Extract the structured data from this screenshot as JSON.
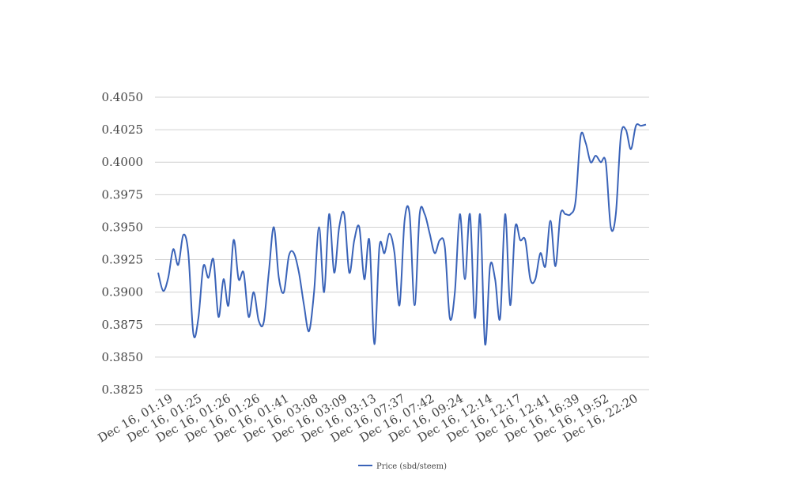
{
  "chart_data": {
    "type": "line",
    "title": "",
    "xlabel": "",
    "ylabel": "",
    "ylim": [
      0.3825,
      0.405
    ],
    "y_ticks": [
      "0.3825",
      "0.3850",
      "0.3875",
      "0.3900",
      "0.3925",
      "0.3950",
      "0.3975",
      "0.4000",
      "0.4025",
      "0.4050"
    ],
    "x_tick_labels": [
      "Dec 16, 01:19",
      "Dec 16, 01:25",
      "Dec 16, 01:26",
      "Dec 16, 01:26",
      "Dec 16, 01:41",
      "Dec 16, 03:08",
      "Dec 16, 03:09",
      "Dec 16, 03:13",
      "Dec 16, 07:37",
      "Dec 16, 07:42",
      "Dec 16, 09:24",
      "Dec 16, 12:14",
      "Dec 16, 12:17",
      "Dec 16, 12:41",
      "Dec 16, 16:39",
      "Dec 16, 19:52",
      "Dec 16, 22:20"
    ],
    "grid": true,
    "legend_position": "bottom",
    "series": [
      {
        "name": "Price (sbd/steem)",
        "color": "#3a63b8",
        "values": [
          0.3915,
          0.3901,
          0.3911,
          0.3933,
          0.3921,
          0.3944,
          0.393,
          0.3868,
          0.388,
          0.392,
          0.3911,
          0.3925,
          0.3881,
          0.391,
          0.389,
          0.394,
          0.391,
          0.3915,
          0.3881,
          0.39,
          0.3878,
          0.3877,
          0.3915,
          0.395,
          0.3911,
          0.39,
          0.3928,
          0.393,
          0.3915,
          0.389,
          0.387,
          0.39,
          0.395,
          0.39,
          0.396,
          0.3915,
          0.395,
          0.396,
          0.3915,
          0.394,
          0.395,
          0.391,
          0.394,
          0.386,
          0.3935,
          0.393,
          0.3945,
          0.393,
          0.389,
          0.3955,
          0.396,
          0.389,
          0.396,
          0.396,
          0.3945,
          0.393,
          0.394,
          0.3935,
          0.388,
          0.39,
          0.396,
          0.391,
          0.396,
          0.388,
          0.396,
          0.386,
          0.392,
          0.391,
          0.388,
          0.396,
          0.389,
          0.395,
          0.394,
          0.394,
          0.391,
          0.391,
          0.393,
          0.392,
          0.3955,
          0.392,
          0.396,
          0.396,
          0.396,
          0.397,
          0.402,
          0.4015,
          0.4,
          0.4005,
          0.4,
          0.4,
          0.395,
          0.396,
          0.402,
          0.4025,
          0.401,
          0.4028,
          0.4028,
          0.4029
        ]
      }
    ]
  }
}
